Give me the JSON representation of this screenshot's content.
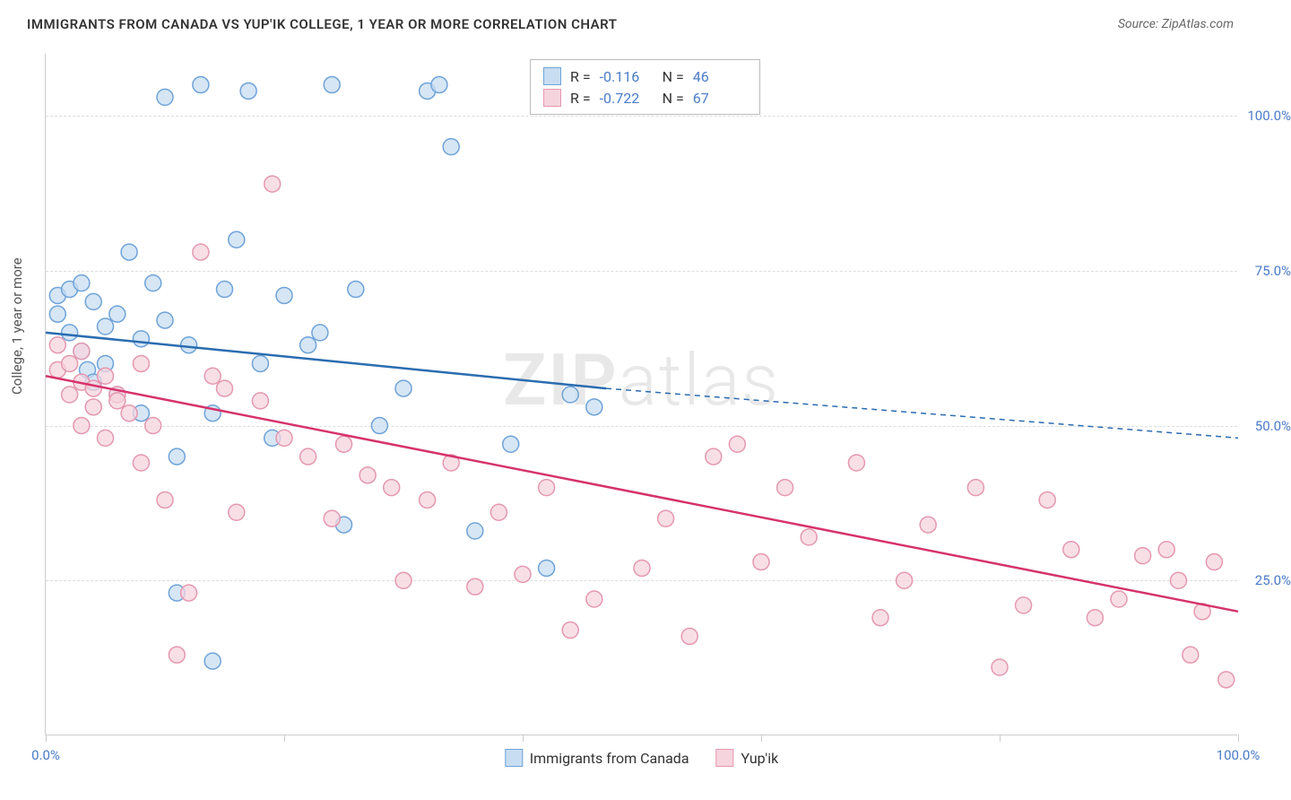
{
  "title": "IMMIGRANTS FROM CANADA VS YUP'IK COLLEGE, 1 YEAR OR MORE CORRELATION CHART",
  "source": "Source: ZipAtlas.com",
  "watermark_a": "ZIP",
  "watermark_b": "atlas",
  "ylabel": "College, 1 year or more",
  "chart": {
    "type": "scatter",
    "xlim": [
      0,
      100
    ],
    "ylim": [
      0,
      110
    ],
    "yticks": [
      25,
      50,
      75,
      100
    ],
    "yticklabels": [
      "25.0%",
      "50.0%",
      "75.0%",
      "100.0%"
    ],
    "xticks": [
      0,
      20,
      40,
      60,
      80,
      100
    ],
    "xticklabels_shown": {
      "0": "0.0%",
      "100": "100.0%"
    },
    "grid_color": "#dddddd",
    "axis_color": "#cccccc",
    "background": "#ffffff",
    "marker_radius": 9,
    "marker_stroke_width": 1.5,
    "line_width": 2.5,
    "series": [
      {
        "name": "Immigrants from Canada",
        "fill": "#c8ddf2",
        "stroke": "#6fa3d9",
        "line_color": "#2b6cb0",
        "R": "-0.116",
        "N": "46",
        "regression": {
          "x1": 0,
          "y1": 65,
          "x2": 47,
          "y2": 56,
          "x2_dash": 100,
          "y2_dash": 48
        },
        "points": [
          [
            1,
            71
          ],
          [
            1,
            68
          ],
          [
            2,
            72
          ],
          [
            2,
            65
          ],
          [
            3,
            73
          ],
          [
            3,
            62
          ],
          [
            3.5,
            59
          ],
          [
            4,
            70
          ],
          [
            4,
            57
          ],
          [
            5,
            66
          ],
          [
            5,
            60
          ],
          [
            6,
            68
          ],
          [
            6,
            55
          ],
          [
            7,
            78
          ],
          [
            8,
            64
          ],
          [
            8,
            52
          ],
          [
            9,
            73
          ],
          [
            10,
            103
          ],
          [
            10,
            67
          ],
          [
            11,
            45
          ],
          [
            12,
            63
          ],
          [
            13,
            105
          ],
          [
            14,
            52
          ],
          [
            14,
            12
          ],
          [
            15,
            72
          ],
          [
            16,
            80
          ],
          [
            17,
            104
          ],
          [
            18,
            60
          ],
          [
            19,
            48
          ],
          [
            20,
            71
          ],
          [
            22,
            63
          ],
          [
            23,
            65
          ],
          [
            24,
            105
          ],
          [
            25,
            34
          ],
          [
            26,
            72
          ],
          [
            28,
            50
          ],
          [
            30,
            56
          ],
          [
            32,
            104
          ],
          [
            33,
            105
          ],
          [
            34,
            95
          ],
          [
            36,
            33
          ],
          [
            39,
            47
          ],
          [
            42,
            27
          ],
          [
            44,
            55
          ],
          [
            46,
            53
          ],
          [
            11,
            23
          ]
        ]
      },
      {
        "name": "Yup'ik",
        "fill": "#f6d4de",
        "stroke": "#e598b0",
        "line_color": "#d6336c",
        "R": "-0.722",
        "N": "67",
        "regression": {
          "x1": 0,
          "y1": 58,
          "x2": 100,
          "y2": 20
        },
        "points": [
          [
            1,
            63
          ],
          [
            1,
            59
          ],
          [
            2,
            60
          ],
          [
            2,
            55
          ],
          [
            3,
            62
          ],
          [
            3,
            57
          ],
          [
            3,
            50
          ],
          [
            4,
            56
          ],
          [
            4,
            53
          ],
          [
            5,
            58
          ],
          [
            5,
            48
          ],
          [
            6,
            55
          ],
          [
            6,
            54
          ],
          [
            7,
            52
          ],
          [
            8,
            60
          ],
          [
            8,
            44
          ],
          [
            9,
            50
          ],
          [
            10,
            38
          ],
          [
            11,
            13
          ],
          [
            12,
            23
          ],
          [
            13,
            78
          ],
          [
            14,
            58
          ],
          [
            15,
            56
          ],
          [
            16,
            36
          ],
          [
            18,
            54
          ],
          [
            19,
            89
          ],
          [
            20,
            48
          ],
          [
            22,
            45
          ],
          [
            24,
            35
          ],
          [
            25,
            47
          ],
          [
            27,
            42
          ],
          [
            29,
            40
          ],
          [
            30,
            25
          ],
          [
            32,
            38
          ],
          [
            34,
            44
          ],
          [
            36,
            24
          ],
          [
            38,
            36
          ],
          [
            40,
            26
          ],
          [
            42,
            40
          ],
          [
            44,
            17
          ],
          [
            46,
            22
          ],
          [
            50,
            27
          ],
          [
            52,
            35
          ],
          [
            54,
            16
          ],
          [
            56,
            45
          ],
          [
            58,
            47
          ],
          [
            60,
            28
          ],
          [
            62,
            40
          ],
          [
            64,
            32
          ],
          [
            68,
            44
          ],
          [
            70,
            19
          ],
          [
            72,
            25
          ],
          [
            74,
            34
          ],
          [
            78,
            40
          ],
          [
            80,
            11
          ],
          [
            82,
            21
          ],
          [
            84,
            38
          ],
          [
            86,
            30
          ],
          [
            88,
            19
          ],
          [
            90,
            22
          ],
          [
            92,
            29
          ],
          [
            94,
            30
          ],
          [
            95,
            25
          ],
          [
            96,
            13
          ],
          [
            97,
            20
          ],
          [
            98,
            28
          ],
          [
            99,
            9
          ]
        ]
      }
    ]
  },
  "legend_stats": [
    {
      "swatch_fill": "#c8ddf2",
      "swatch_stroke": "#6fa3d9",
      "r_label": "R = ",
      "r_val": "-0.116",
      "n_label": "N = ",
      "n_val": "46"
    },
    {
      "swatch_fill": "#f6d4de",
      "swatch_stroke": "#e598b0",
      "r_label": "R = ",
      "r_val": "-0.722",
      "n_label": "N = ",
      "n_val": "67"
    }
  ],
  "bottom_legend": [
    {
      "swatch_fill": "#c8ddf2",
      "swatch_stroke": "#6fa3d9",
      "label": "Immigrants from Canada"
    },
    {
      "swatch_fill": "#f6d4de",
      "swatch_stroke": "#e598b0",
      "label": "Yup'ik"
    }
  ]
}
